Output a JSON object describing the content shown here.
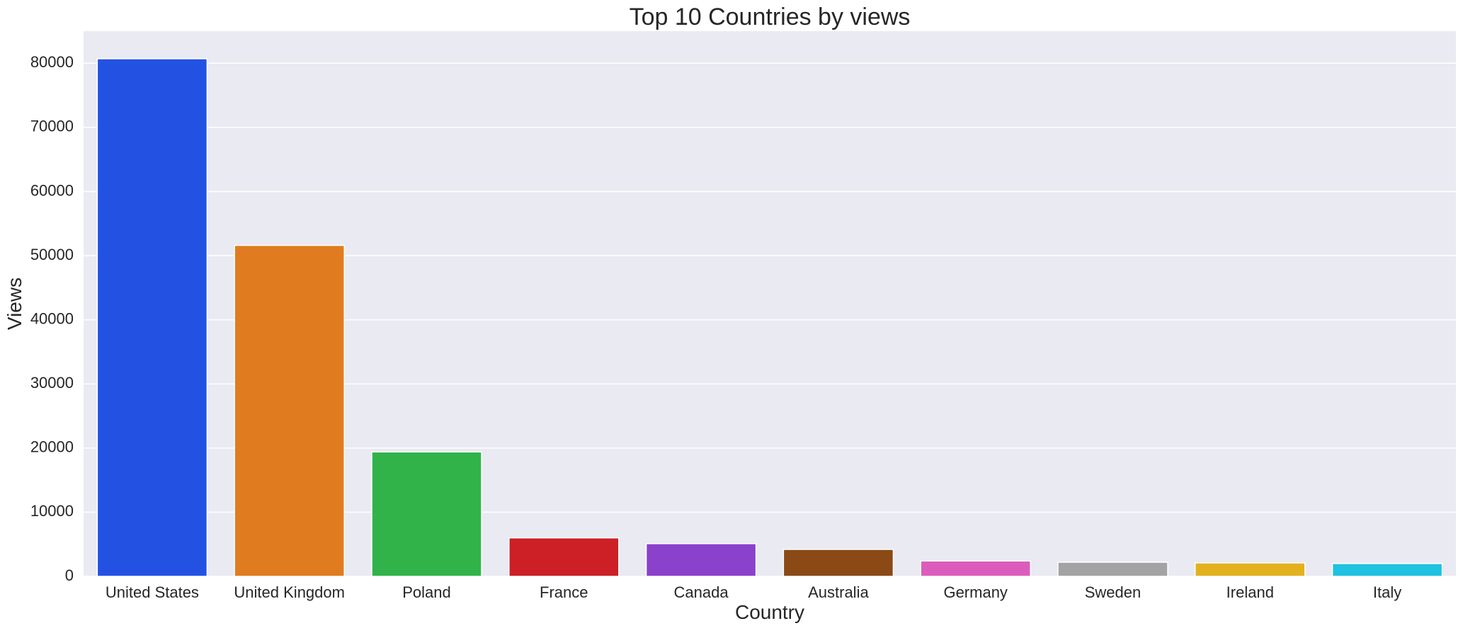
{
  "chart_data": {
    "type": "bar",
    "title": "Top 10 Countries by views",
    "xlabel": "Country",
    "ylabel": "Views",
    "categories": [
      "United States",
      "United Kingdom",
      "Poland",
      "France",
      "Canada",
      "Australia",
      "Germany",
      "Sweden",
      "Ireland",
      "Italy"
    ],
    "values": [
      80700,
      51600,
      19400,
      6000,
      5100,
      4200,
      2400,
      2200,
      2100,
      2000
    ],
    "colors": [
      "#2352e3",
      "#e07c1f",
      "#31b34a",
      "#cc1f26",
      "#8a41cc",
      "#8a4915",
      "#dc5cbd",
      "#a3a3a3",
      "#e3b11d",
      "#1fc2e0"
    ],
    "ylim": [
      0,
      85000
    ],
    "yticks": [
      0,
      10000,
      20000,
      30000,
      40000,
      50000,
      60000,
      70000,
      80000
    ],
    "ytick_labels": [
      "0",
      "10000",
      "20000",
      "30000",
      "40000",
      "50000",
      "60000",
      "70000",
      "80000"
    ],
    "grid": true,
    "plot_background": "#eaeaf2",
    "grid_color": "#ffffff"
  }
}
